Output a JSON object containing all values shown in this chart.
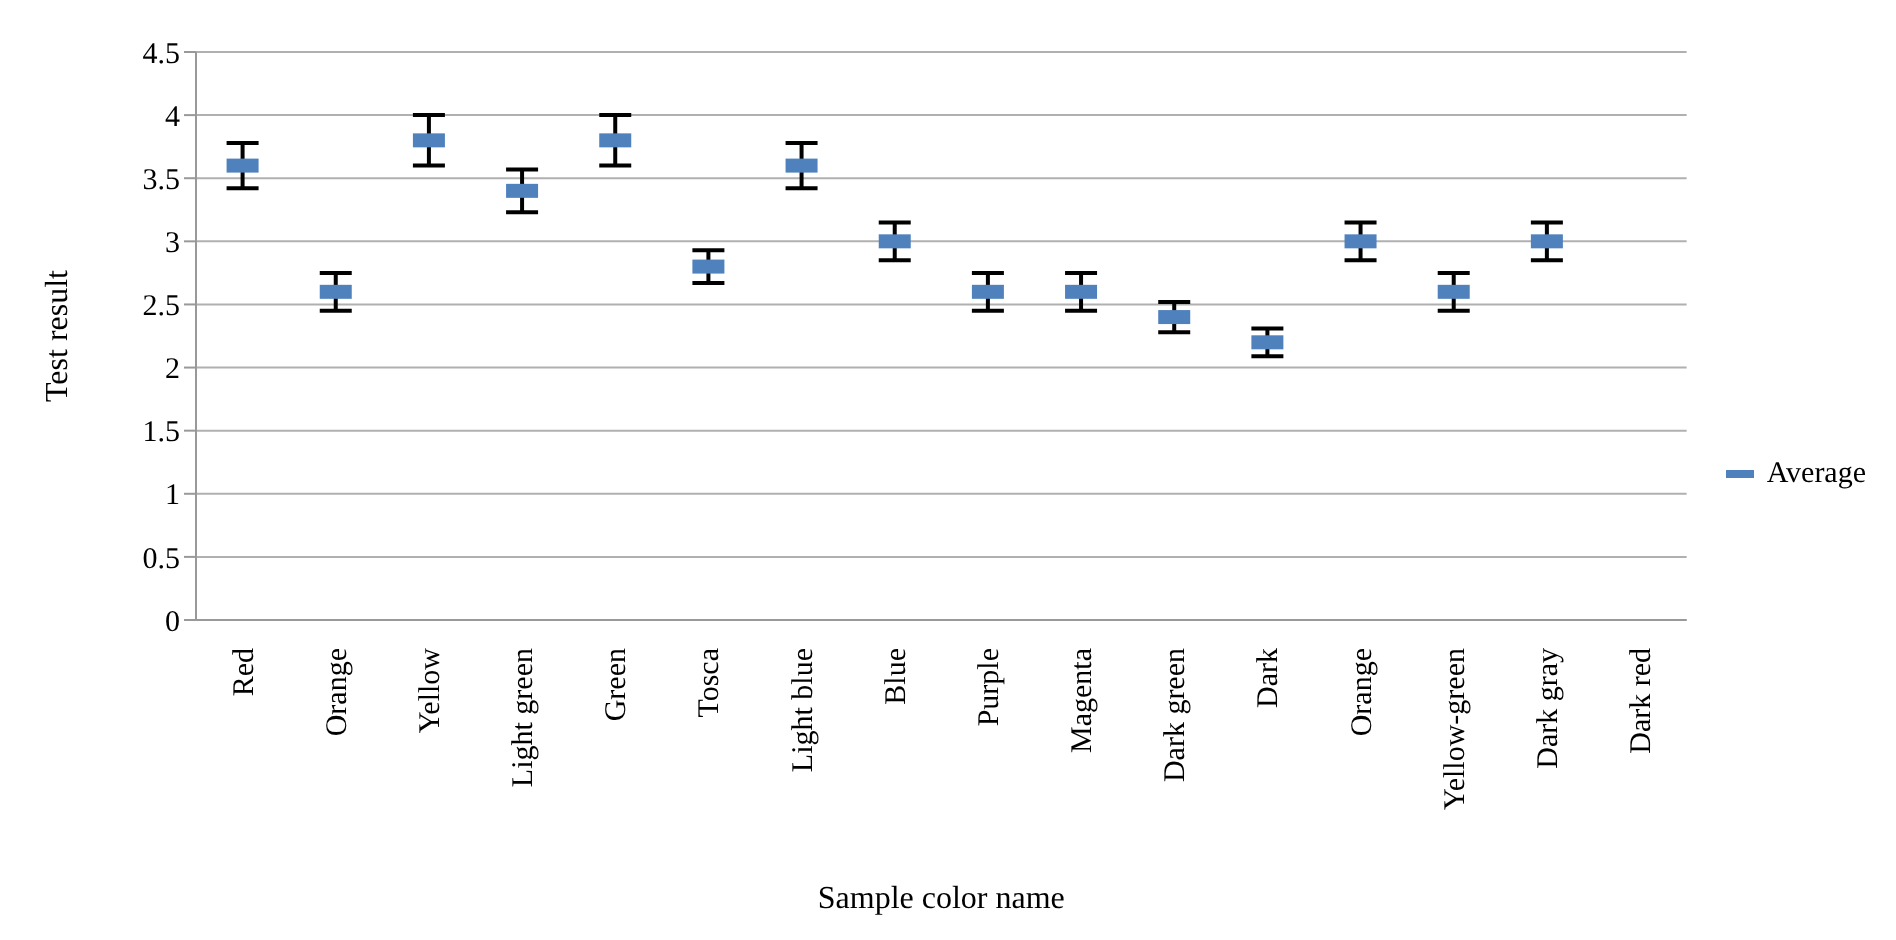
{
  "chart_data": {
    "type": "scatter",
    "xlabel": "Sample color name",
    "ylabel": "Test result",
    "categories": [
      "Red",
      "Orange",
      "Yellow",
      "Light green",
      "Green",
      "Tosca",
      "Light blue",
      "Blue",
      "Purple",
      "Magenta",
      "Dark green",
      "Dark",
      "Orange",
      "Yellow-green",
      "Dark gray",
      "Dark red"
    ],
    "series": [
      {
        "name": "Average",
        "color": "#4f81bd",
        "values": [
          3.6,
          2.6,
          3.8,
          3.4,
          3.8,
          2.8,
          3.6,
          3.0,
          2.6,
          2.6,
          2.4,
          2.2,
          3.0,
          2.6,
          3.0,
          null
        ],
        "errors": [
          0.18,
          0.15,
          0.2,
          0.17,
          0.2,
          0.13,
          0.18,
          0.15,
          0.15,
          0.15,
          0.12,
          0.11,
          0.15,
          0.15,
          0.15,
          null
        ]
      }
    ],
    "ylim": [
      0,
      4.5
    ],
    "yticks": [
      0,
      0.5,
      1,
      1.5,
      2,
      2.5,
      3,
      3.5,
      4,
      4.5
    ],
    "grid": "y",
    "legend": "right"
  }
}
